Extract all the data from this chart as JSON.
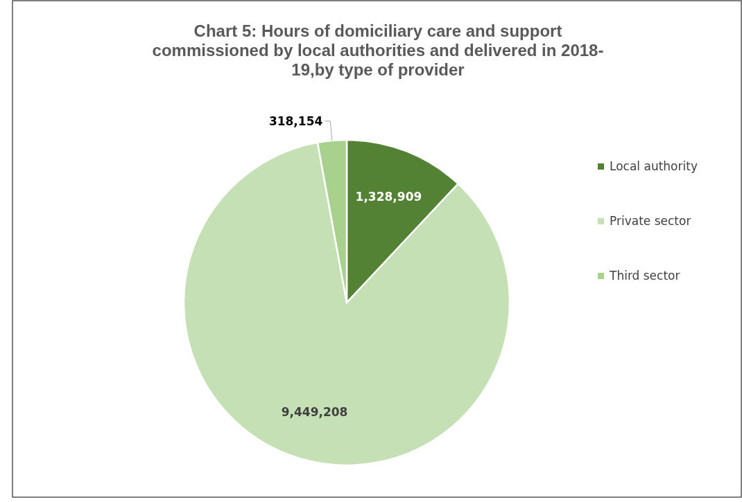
{
  "chart_data": {
    "type": "pie",
    "title": "Chart 5: Hours of domiciliary care and support\ncommissioned by local authorities and delivered in 2018-19,by type of provider",
    "categories": [
      "Local authority",
      "Private sector",
      "Third sector"
    ],
    "values": [
      1328909,
      9449208,
      318154
    ],
    "colors": [
      "#548235",
      "#c5e0b4",
      "#a9d18e"
    ],
    "value_labels": [
      "1,328,909",
      "9,449,208",
      "318,154"
    ],
    "legend": "right"
  }
}
